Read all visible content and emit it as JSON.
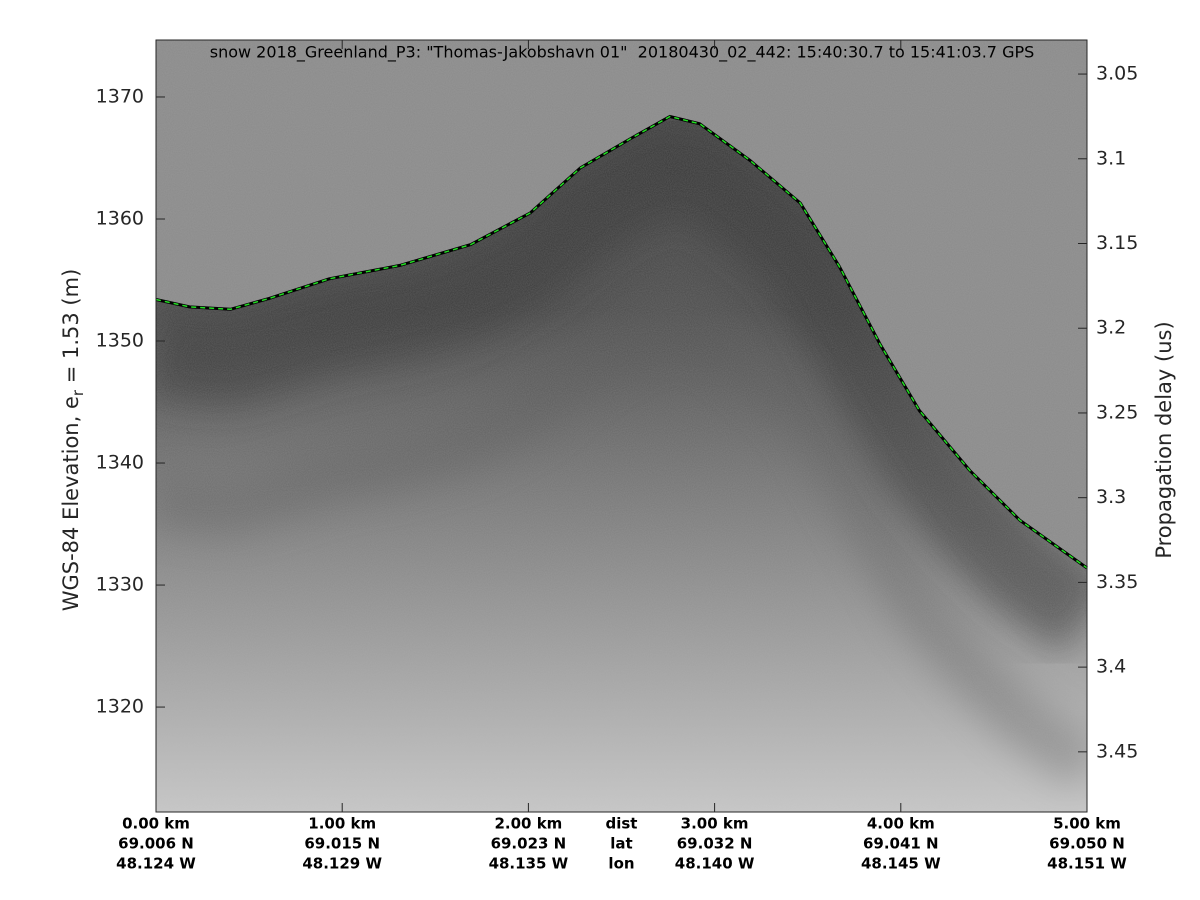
{
  "chart_data": {
    "type": "line",
    "title": "snow 2018_Greenland_P3: \"Thomas-Jakobshavn 01\"  20180430_02_442: 15:40:30.7 to 15:41:03.7 GPS",
    "y_label": {
      "text": "WGS-84 Elevation, e",
      "subscript": "r",
      "rest": " = 1.53 (m)"
    },
    "y2_label": "Propagation delay (us)",
    "x": [
      0,
      0.18,
      0.4,
      0.61,
      0.93,
      1.31,
      1.69,
      2.01,
      2.28,
      2.55,
      2.76,
      2.92,
      3.19,
      3.46,
      3.67,
      3.89,
      4.1,
      4.37,
      4.64,
      5.0
    ],
    "series": [
      {
        "color": "#22dd22",
        "values": [
          1353.4,
          1352.8,
          1352.6,
          1353.5,
          1355.1,
          1356.2,
          1357.9,
          1360.5,
          1364.2,
          1366.6,
          1368.4,
          1367.8,
          1364.8,
          1361.3,
          1356.1,
          1349.7,
          1344.3,
          1339.4,
          1335.3,
          1331.4
        ]
      }
    ],
    "xlim": [
      0,
      5
    ],
    "xticks": [
      {
        "value": 0,
        "label": "0.00 km"
      },
      {
        "value": 1,
        "label": "1.00 km"
      },
      {
        "value": 2,
        "label": "2.00 km"
      },
      {
        "value": 3,
        "label": "3.00 km"
      },
      {
        "value": 4,
        "label": "4.00 km"
      },
      {
        "value": 5,
        "label": "5.00 km"
      }
    ],
    "x_lat_labels": [
      "69.006 N",
      "69.015 N",
      "69.023 N",
      "69.032 N",
      "69.041 N",
      "69.050 N"
    ],
    "x_lon_labels": [
      "48.124 W",
      "48.129 W",
      "48.135 W",
      "48.140 W",
      "48.145 W",
      "48.151 W"
    ],
    "x_row_labels": [
      "dist",
      "lat",
      "lon"
    ],
    "ylim": [
      1311.4,
      1374.67
    ],
    "yticks": [
      1320,
      1330,
      1340,
      1350,
      1360,
      1370
    ],
    "y2lim": [
      3.0299,
      3.4855
    ],
    "y2ticks": [
      3.05,
      3.1,
      3.15,
      3.2,
      3.25,
      3.3,
      3.35,
      3.4,
      3.45
    ]
  }
}
